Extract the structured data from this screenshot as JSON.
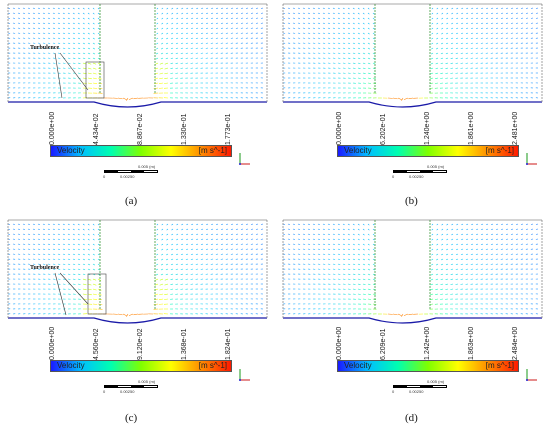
{
  "panels": [
    {
      "id": "a",
      "caption": "(a)",
      "turbulence_label": "Turbulence",
      "colorbar": {
        "name": "Velocity",
        "unit": "[m s^-1]",
        "ticks": [
          "0.000e+00",
          "4.434e-02",
          "8.867e-02",
          "1.330e-01",
          "1.773e-01"
        ]
      },
      "scale_labels": [
        "0",
        "0.00250",
        "0.005 (m)",
        "0.00375"
      ]
    },
    {
      "id": "b",
      "caption": "(b)",
      "turbulence_label": "",
      "colorbar": {
        "name": "Velocity",
        "unit": "[m s^-1]",
        "ticks": [
          "0.000e+00",
          "6.202e-01",
          "1.240e+00",
          "1.861e+00",
          "2.481e+00"
        ]
      },
      "scale_labels": [
        "0",
        "0.00250",
        "0.005 (m)",
        "0.00375"
      ]
    },
    {
      "id": "c",
      "caption": "(c)",
      "turbulence_label": "Turbulence",
      "colorbar": {
        "name": "Velocity",
        "unit": "[m s^-1]",
        "ticks": [
          "0.000e+00",
          "4.560e-02",
          "9.120e-02",
          "1.368e-01",
          "1.824e-01"
        ]
      },
      "scale_labels": [
        "0",
        "0.00250",
        "0.005 (m)",
        "0.00375"
      ]
    },
    {
      "id": "d",
      "caption": "(d)",
      "turbulence_label": "",
      "colorbar": {
        "name": "Velocity",
        "unit": "[m s^-1]",
        "ticks": [
          "0.000e+00",
          "6.209e-01",
          "1.242e+00",
          "1.863e+00",
          "2.484e+00"
        ]
      },
      "scale_labels": [
        "0",
        "0.00250",
        "0.005 (m)",
        "0.00375"
      ]
    }
  ],
  "colors": {
    "colormap": [
      "#1a1aff",
      "#00bfff",
      "#00ffb0",
      "#7fff00",
      "#ffff00",
      "#ff8c00",
      "#ff1a00"
    ],
    "vector_low": "#1a1aa8",
    "wall": "#3a9a3a"
  }
}
